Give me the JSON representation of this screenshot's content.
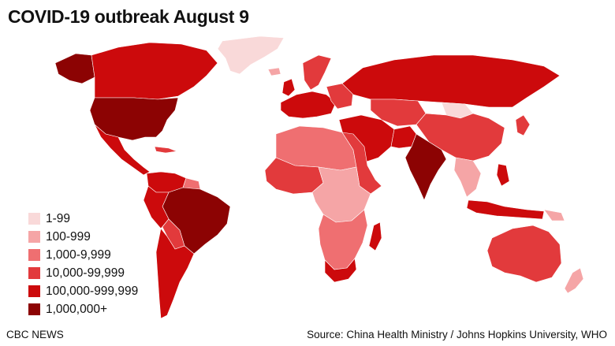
{
  "title": "COVID-19 outbreak August 9",
  "legend": {
    "items": [
      {
        "label": "1-99",
        "color": "#f9d9d9"
      },
      {
        "label": "100-999",
        "color": "#f5a5a6"
      },
      {
        "label": "1,000-9,999",
        "color": "#ef6f71"
      },
      {
        "label": "10,000-99,999",
        "color": "#e23a3c"
      },
      {
        "label": "100,000-999,999",
        "color": "#cc0a0c"
      },
      {
        "label": "1,000,000+",
        "color": "#8c0303"
      }
    ]
  },
  "footer": {
    "credit": "CBC NEWS",
    "source": "Source: China Health Ministry / Johns Hopkins University, WHO"
  }
}
